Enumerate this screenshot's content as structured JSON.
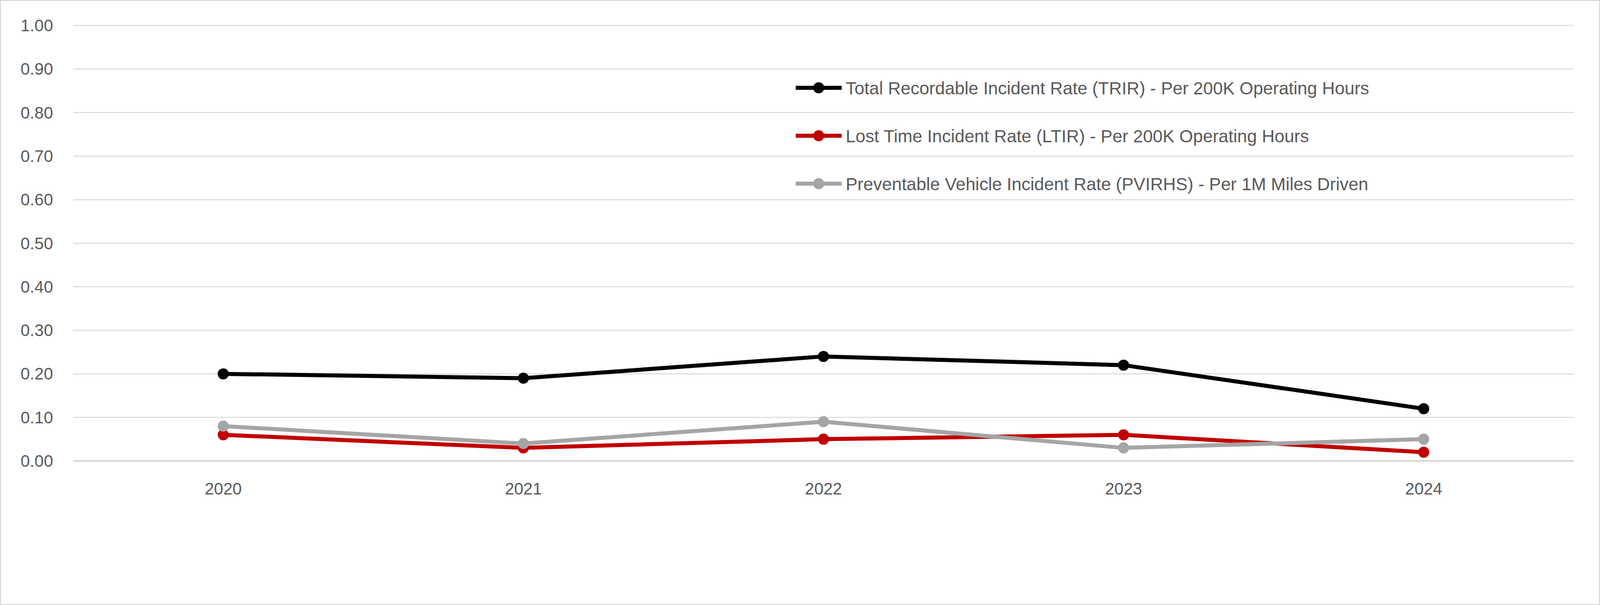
{
  "chart_data": {
    "type": "line",
    "categories": [
      "2020",
      "2021",
      "2022",
      "2023",
      "2024"
    ],
    "series": [
      {
        "name": "Total Recordable Incident Rate (TRIR) - Per 200K Operating Hours",
        "color": "#000000",
        "marker": "circle",
        "values": [
          0.2,
          0.19,
          0.24,
          0.22,
          0.12
        ]
      },
      {
        "name": "Lost Time Incident Rate (LTIR) - Per 200K Operating Hours",
        "color": "#c00000",
        "marker": "circle",
        "values": [
          0.06,
          0.03,
          0.05,
          0.06,
          0.02
        ]
      },
      {
        "name": "Preventable Vehicle Incident Rate (PVIRHS) - Per 1M Miles Driven",
        "color": "#a5a5a5",
        "marker": "circle",
        "values": [
          0.08,
          0.04,
          0.09,
          0.03,
          0.05
        ]
      }
    ],
    "ylim": [
      0,
      1
    ],
    "yticks": [
      {
        "value": 0,
        "label": "0.00"
      },
      {
        "value": 0.1,
        "label": "0.10"
      },
      {
        "value": 0.2,
        "label": "0.20"
      },
      {
        "value": 0.3,
        "label": "0.30"
      },
      {
        "value": 0.4,
        "label": "0.40"
      },
      {
        "value": 0.5,
        "label": "0.50"
      },
      {
        "value": 0.6,
        "label": "0.60"
      },
      {
        "value": 0.7,
        "label": "0.70"
      },
      {
        "value": 0.8,
        "label": "0.80"
      },
      {
        "value": 0.9,
        "label": "0.90"
      },
      {
        "value": 1,
        "label": "1.00"
      }
    ],
    "grid": true,
    "legend": "top-right"
  }
}
